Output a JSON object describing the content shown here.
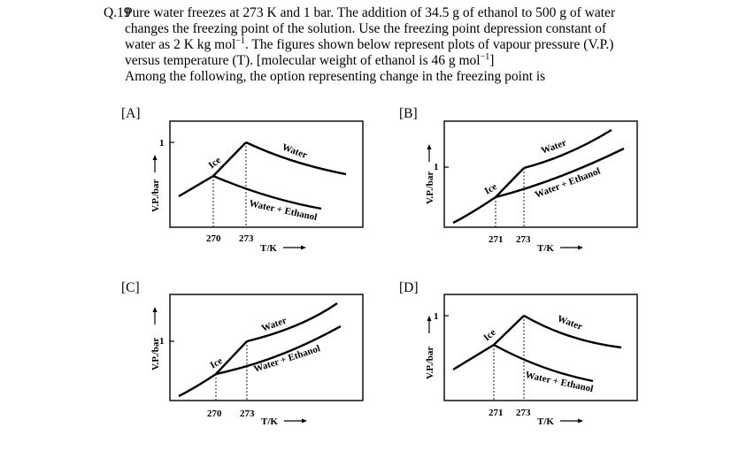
{
  "question": {
    "number": "Q.19",
    "line1": "Pure water freezes at 273 K and 1 bar. The addition of 34.5 g of ethanol to 500 g of water",
    "line2": "changes the freezing point of the solution. Use the freezing point depression constant of",
    "line3_pre": "water as 2 K kg mol",
    "line3_sup": "−1",
    "line3_post": ". The figures shown below represent plots of vapour pressure (V.P.)",
    "line4_pre": "versus temperature (T). [molecular weight of ethanol is 46 g mol",
    "line4_sup": "−1",
    "line4_post": "]",
    "prompt": "Among the following, the option representing change in the freezing point is"
  },
  "axis": {
    "ylabel": "V.P./bar",
    "xlabel": "T/K",
    "y_tick": "1"
  },
  "curve_labels": {
    "ice": "Ice",
    "water": "Water",
    "solution": "Water + Ethanol"
  },
  "options": [
    {
      "label": "[A]",
      "tick_low": "270",
      "tick_high": "273"
    },
    {
      "label": "[B]",
      "tick_low": "271",
      "tick_high": "273"
    },
    {
      "label": "[C]",
      "tick_low": "270",
      "tick_high": "273"
    },
    {
      "label": "[D]",
      "tick_low": "271",
      "tick_high": "273"
    }
  ]
}
